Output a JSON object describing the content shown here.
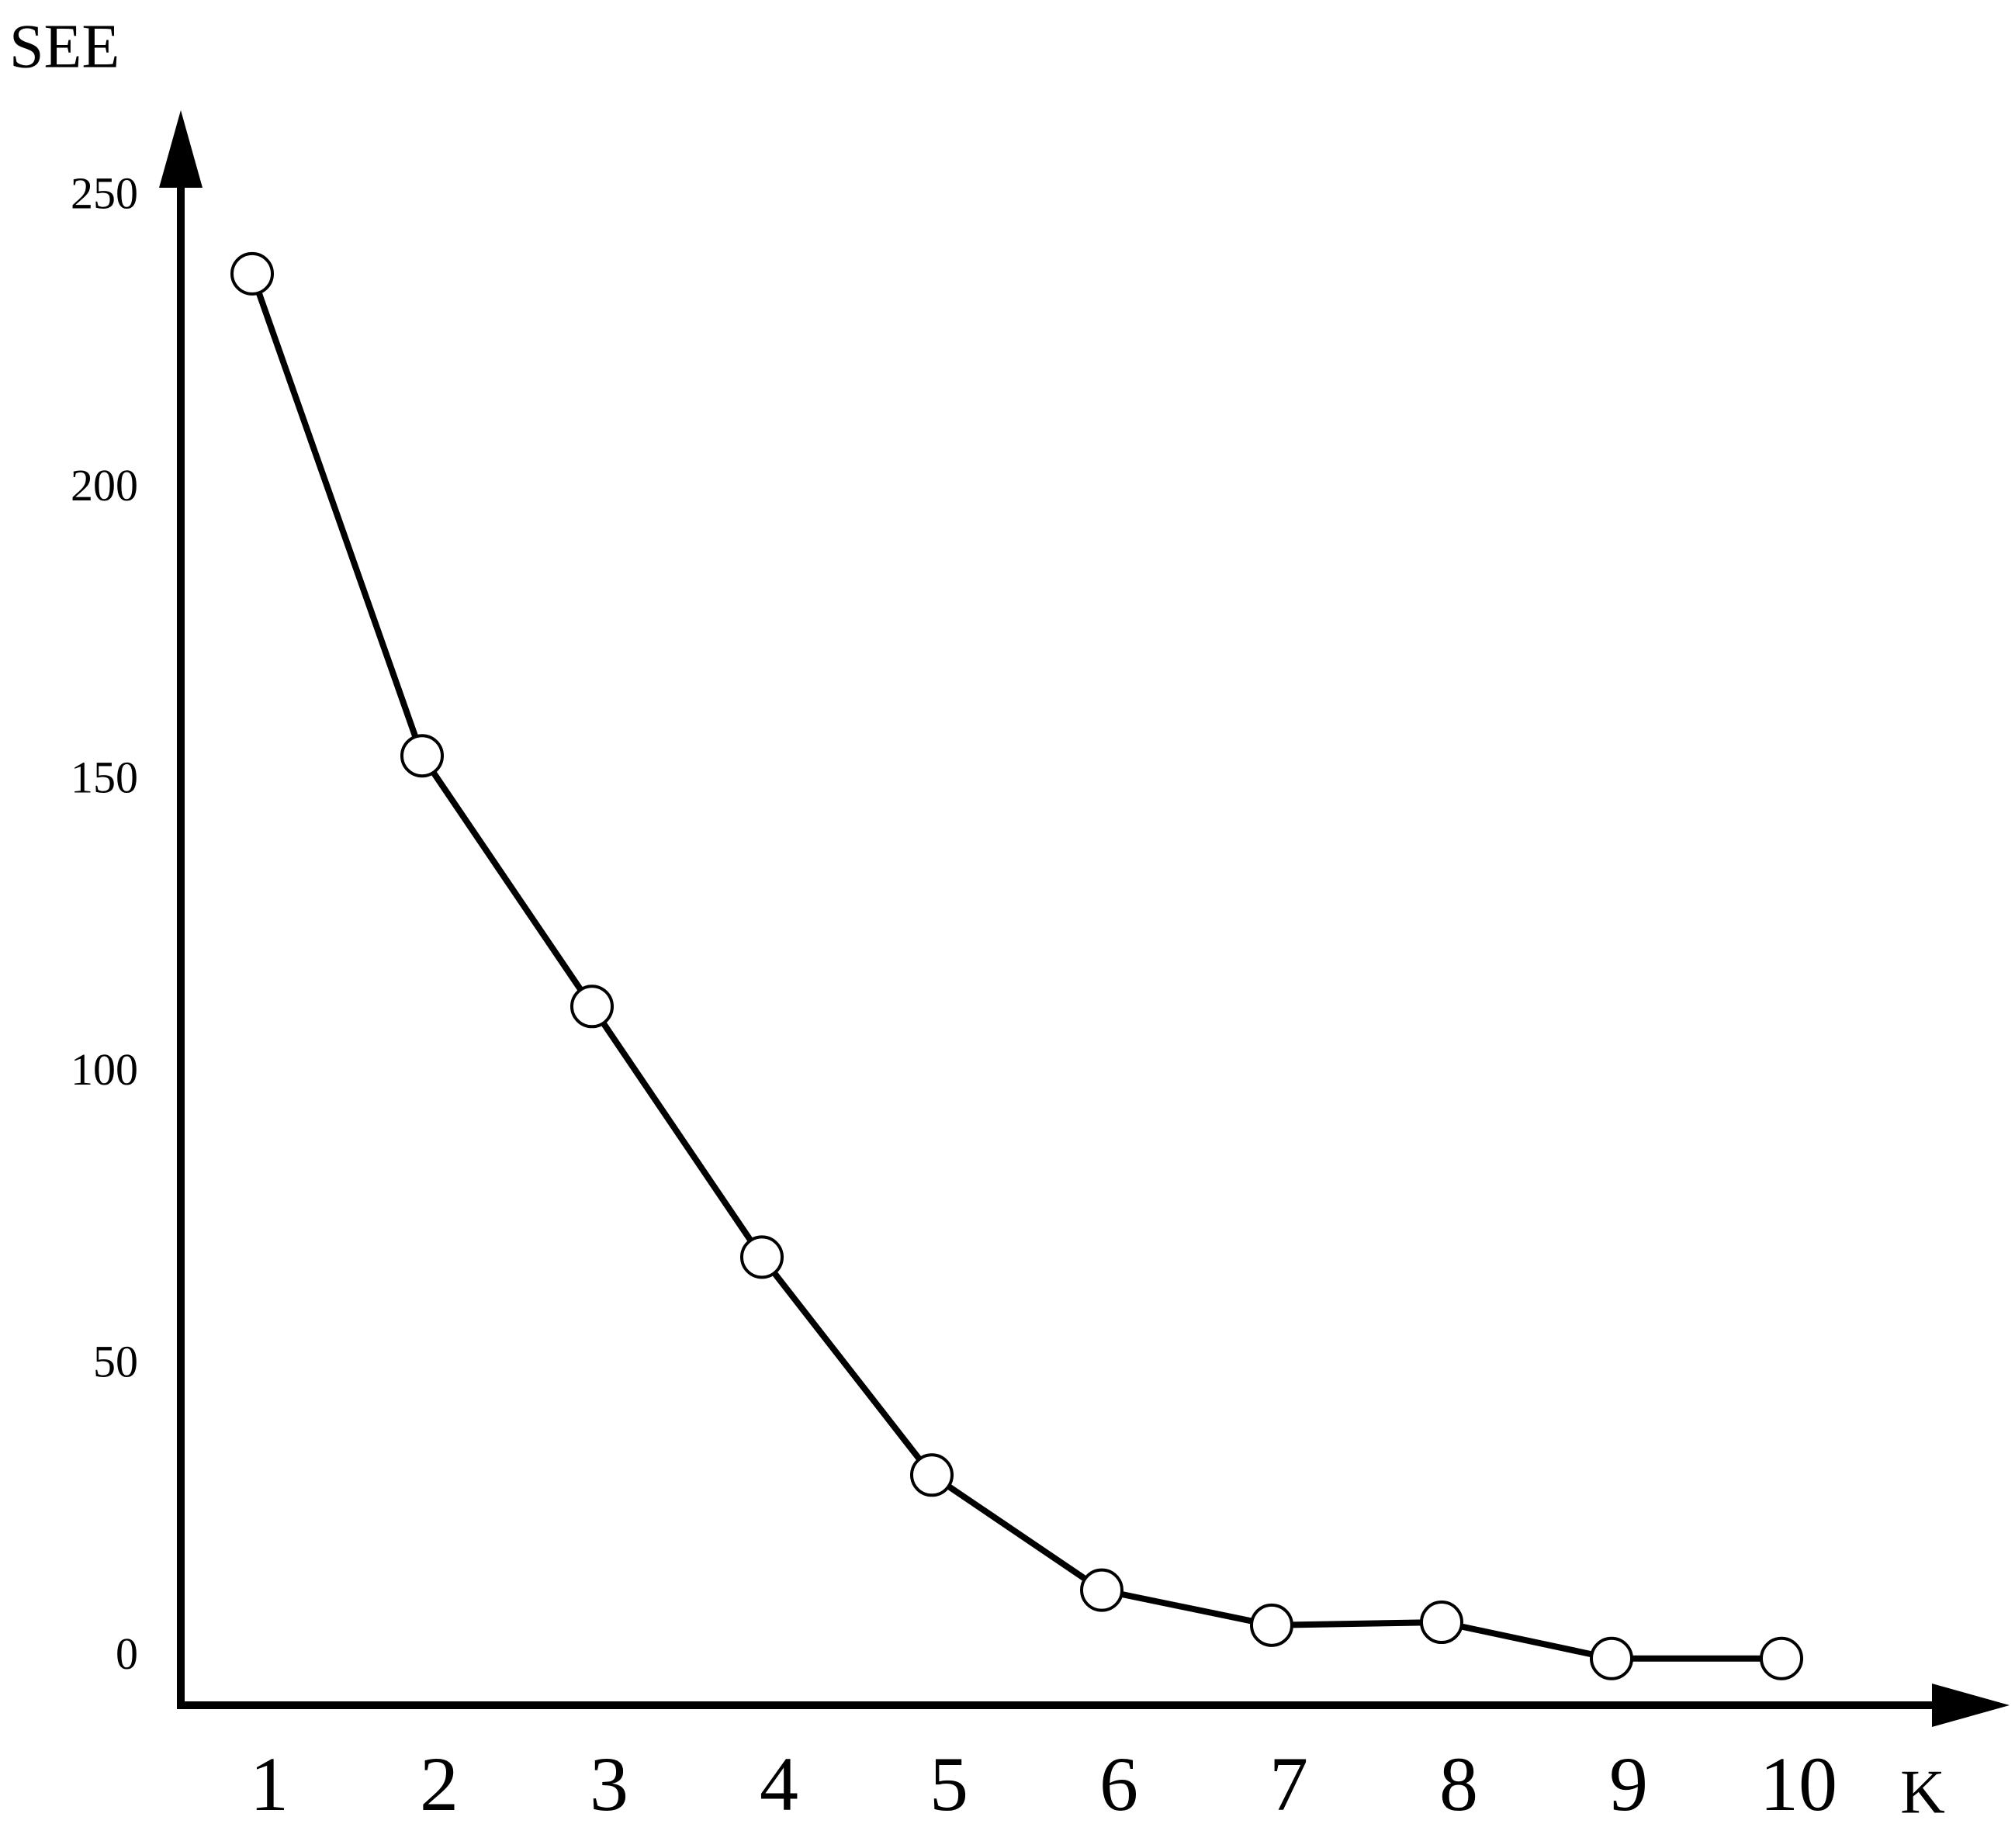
{
  "chart_data": {
    "type": "line",
    "x_label": "K",
    "y_label": "SEE",
    "categories": [
      "1",
      "2",
      "3",
      "4",
      "5",
      "6",
      "7",
      "8",
      "9",
      "10"
    ],
    "values": [
      237,
      154.5,
      111.6,
      68.7,
      31.4,
      11.7,
      5.7,
      6.2,
      0,
      0
    ],
    "color": "#000000",
    "ylim": [
      -8,
      265
    ],
    "yticks": [
      0,
      50,
      100,
      150,
      200,
      250
    ],
    "grid": false
  }
}
